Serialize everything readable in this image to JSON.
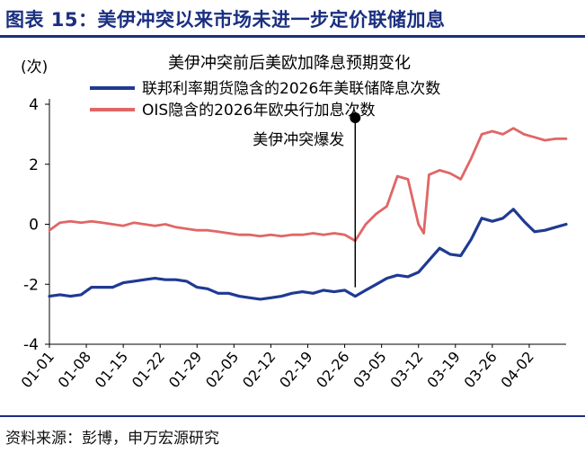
{
  "header": {
    "title": "图表 15：美伊冲突以来市场未进一步定价联储加息"
  },
  "footer": {
    "source": "资料来源：彭博，申万宏源研究"
  },
  "colors": {
    "brand": "#1a2f80",
    "futures": "#1f3a93",
    "ois": "#e06666"
  },
  "chart_data": {
    "type": "line",
    "title": "美伊冲突前后美欧加降息预期变化",
    "ylabel": "(次)",
    "ylim": [
      -4,
      4
    ],
    "yticks": [
      4,
      2,
      0,
      -2,
      -4
    ],
    "xticklabels": [
      "01-01",
      "01-08",
      "01-15",
      "01-22",
      "01-29",
      "02-05",
      "02-12",
      "02-19",
      "02-26",
      "03-05",
      "03-12",
      "03-19",
      "03-26",
      "04-02"
    ],
    "x_index_range": [
      0,
      98
    ],
    "legend_placement": "top-left",
    "grid": false,
    "annotation": {
      "text": "美伊冲突爆发",
      "x_index": 58
    },
    "series": [
      {
        "name": "联邦利率期货隐含的2026年美联储降息次数",
        "x_index": [
          0,
          2,
          4,
          6,
          8,
          10,
          12,
          14,
          16,
          18,
          20,
          22,
          24,
          26,
          28,
          30,
          32,
          34,
          36,
          38,
          40,
          42,
          44,
          46,
          48,
          50,
          52,
          54,
          56,
          58,
          60,
          62,
          64,
          66,
          68,
          70,
          72,
          74,
          76,
          78,
          80,
          82,
          84,
          86,
          88,
          90,
          92,
          94,
          96,
          98
        ],
        "values": [
          -2.4,
          -2.35,
          -2.4,
          -2.35,
          -2.1,
          -2.1,
          -2.1,
          -1.95,
          -1.9,
          -1.85,
          -1.8,
          -1.85,
          -1.85,
          -1.9,
          -2.1,
          -2.15,
          -2.3,
          -2.3,
          -2.4,
          -2.45,
          -2.5,
          -2.45,
          -2.4,
          -2.3,
          -2.25,
          -2.3,
          -2.2,
          -2.25,
          -2.2,
          -2.4,
          -2.2,
          -2.0,
          -1.8,
          -1.7,
          -1.75,
          -1.6,
          -1.2,
          -0.8,
          -1.0,
          -1.05,
          -0.5,
          0.2,
          0.1,
          0.2,
          0.5,
          0.1,
          -0.25,
          -0.2,
          -0.1,
          0.0
        ]
      },
      {
        "name": "OIS隐含的2026年欧央行加息次数",
        "x_index": [
          0,
          2,
          4,
          6,
          8,
          10,
          12,
          14,
          16,
          18,
          20,
          22,
          24,
          26,
          28,
          30,
          32,
          34,
          36,
          38,
          40,
          42,
          44,
          46,
          48,
          50,
          52,
          54,
          56,
          58,
          60,
          62,
          64,
          66,
          68,
          70,
          71,
          72,
          74,
          76,
          78,
          80,
          82,
          84,
          86,
          88,
          90,
          92,
          94,
          96,
          98
        ],
        "values": [
          -0.2,
          0.05,
          0.1,
          0.05,
          0.1,
          0.05,
          0.0,
          -0.05,
          0.05,
          0.0,
          -0.05,
          0.0,
          -0.1,
          -0.15,
          -0.2,
          -0.2,
          -0.25,
          -0.3,
          -0.35,
          -0.35,
          -0.4,
          -0.35,
          -0.4,
          -0.35,
          -0.35,
          -0.3,
          -0.35,
          -0.3,
          -0.35,
          -0.55,
          0.0,
          0.35,
          0.6,
          1.6,
          1.5,
          0.0,
          -0.3,
          1.65,
          1.8,
          1.7,
          1.5,
          2.2,
          3.0,
          3.1,
          3.0,
          3.2,
          3.0,
          2.9,
          2.8,
          2.85,
          2.85
        ]
      }
    ]
  }
}
